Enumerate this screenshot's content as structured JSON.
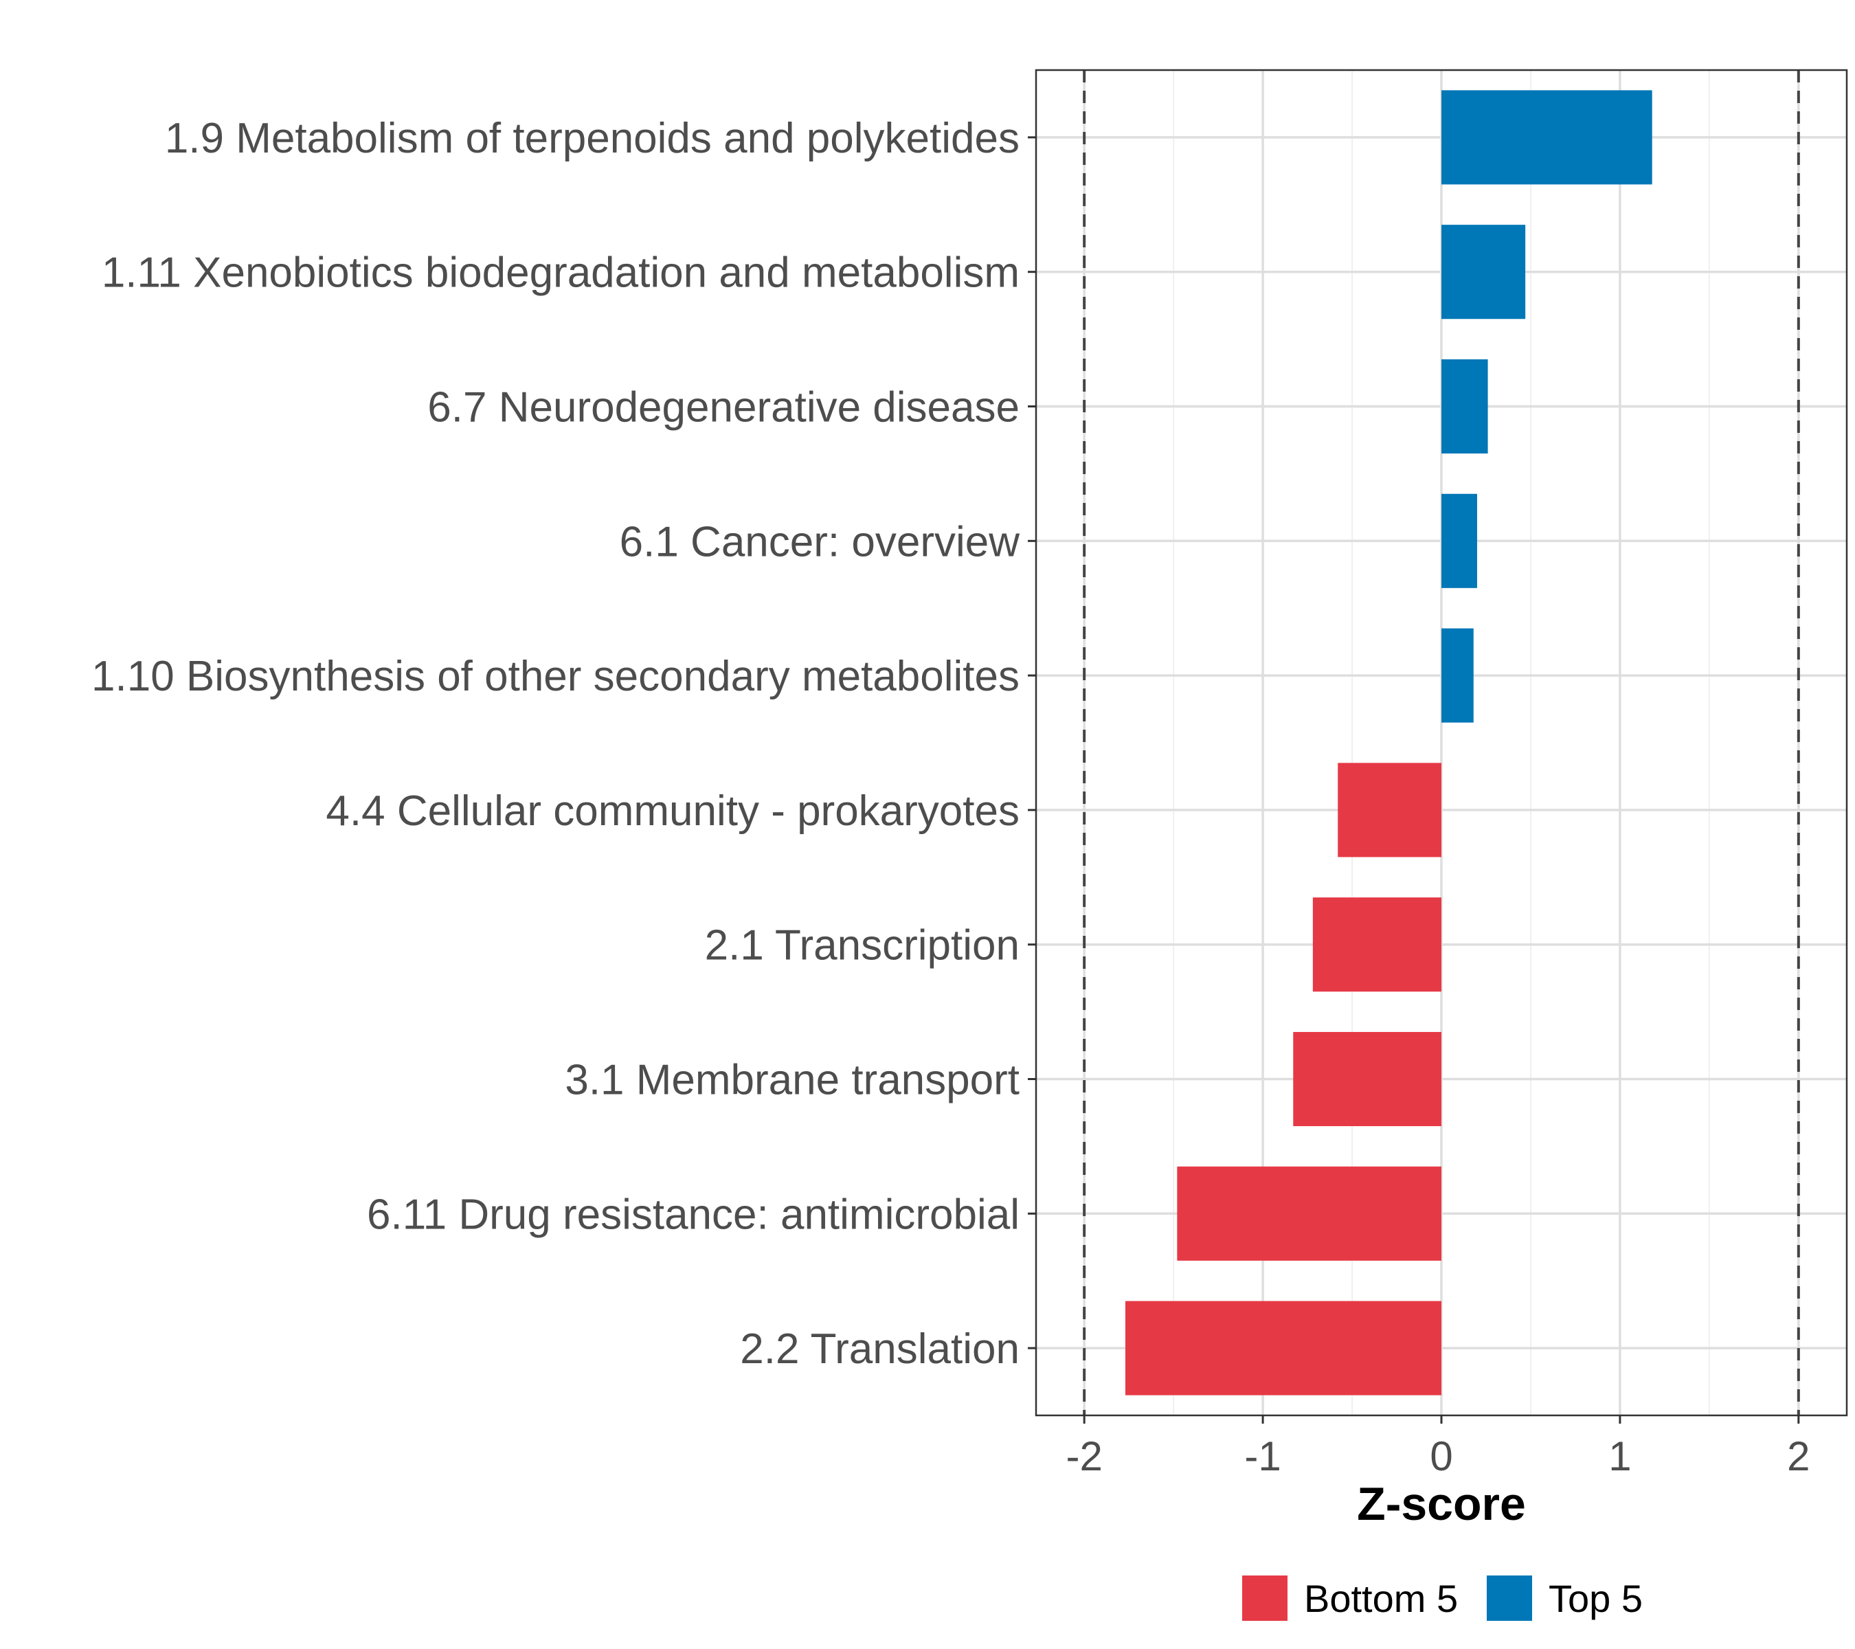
{
  "chart_data": {
    "type": "bar",
    "orientation": "horizontal",
    "title": "",
    "xlabel": "Z-score",
    "ylabel": "",
    "xlim": [
      -2.27,
      2.27
    ],
    "xticks": [
      -2,
      -1,
      0,
      1,
      2
    ],
    "xtick_labels": [
      "-2",
      "-1",
      "0",
      "1",
      "2"
    ],
    "reference_lines": [
      -2,
      2
    ],
    "grid": true,
    "categories": [
      "1.9 Metabolism of terpenoids and polyketides",
      "1.11 Xenobiotics biodegradation and metabolism",
      "6.7 Neurodegenerative disease",
      "6.1 Cancer: overview",
      "1.10 Biosynthesis of other secondary metabolites",
      "4.4 Cellular community - prokaryotes",
      "2.1 Transcription",
      "3.1 Membrane transport",
      "6.11 Drug resistance: antimicrobial",
      "2.2 Translation"
    ],
    "values": [
      1.18,
      0.47,
      0.26,
      0.2,
      0.18,
      -0.58,
      -0.72,
      -0.83,
      -1.48,
      -1.77
    ],
    "groups": [
      "Top 5",
      "Top 5",
      "Top 5",
      "Top 5",
      "Top 5",
      "Bottom 5",
      "Bottom 5",
      "Bottom 5",
      "Bottom 5",
      "Bottom 5"
    ],
    "legend": [
      {
        "name": "Bottom 5",
        "color": "#e63946"
      },
      {
        "name": "Top 5",
        "color": "#0077b6"
      }
    ],
    "legend_position": "bottom"
  }
}
